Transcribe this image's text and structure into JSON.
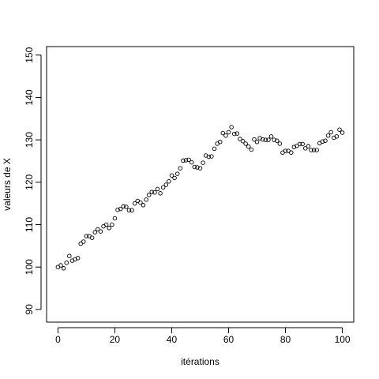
{
  "chart_data": {
    "type": "scatter",
    "xlabel": "itérations",
    "ylabel": "valeurs de X",
    "xlim": [
      -4,
      104
    ],
    "ylim": [
      87,
      152
    ],
    "x_ticks": [
      0,
      20,
      40,
      60,
      80,
      100
    ],
    "y_ticks": [
      90,
      100,
      110,
      120,
      130,
      140,
      150
    ],
    "x_tick_labels": [
      "0",
      "20",
      "40",
      "60",
      "80",
      "100"
    ],
    "y_tick_labels": [
      "90",
      "100",
      "110",
      "120",
      "130",
      "140",
      "150"
    ],
    "grid": false,
    "marker": "open-circle",
    "marker_color": "#000000",
    "series": [
      {
        "x": [
          0,
          1,
          2,
          3,
          4,
          5,
          6,
          7,
          8,
          9,
          10,
          11,
          12,
          13,
          14,
          15,
          16,
          17,
          18,
          19,
          20,
          21,
          22,
          23,
          24,
          25,
          26,
          27,
          28,
          29,
          30,
          31,
          32,
          33,
          34,
          35,
          36,
          37,
          38,
          39,
          40,
          41,
          42,
          43,
          44,
          45,
          46,
          47,
          48,
          49,
          50,
          51,
          52,
          53,
          54,
          55,
          56,
          57,
          58,
          59,
          60,
          61,
          62,
          63,
          64,
          65,
          66,
          67,
          68,
          69,
          70,
          71,
          72,
          73,
          74,
          75,
          76,
          77,
          78,
          79,
          80,
          81,
          82,
          83,
          84,
          85,
          86,
          87,
          88,
          89,
          90,
          91,
          92,
          93,
          94,
          95,
          96,
          97,
          98,
          99,
          100
        ],
        "y": [
          100,
          100.4,
          99.7,
          101,
          102.6,
          101.5,
          101.8,
          102.1,
          105.5,
          106,
          107.3,
          107.3,
          106.9,
          108.2,
          108.9,
          108.4,
          109.6,
          110,
          109.2,
          110,
          111.5,
          113.5,
          113.7,
          114.3,
          114.2,
          113.4,
          113.4,
          115,
          115.6,
          115.2,
          114.6,
          115.9,
          117,
          117.7,
          117.6,
          118.4,
          117.4,
          118.8,
          119.4,
          120.2,
          121.6,
          121,
          122,
          123.3,
          125.1,
          125.2,
          125.3,
          124.7,
          123.6,
          123.5,
          123.3,
          124.6,
          126.3,
          126,
          126.1,
          127.9,
          129.1,
          129.5,
          131.6,
          131,
          131.8,
          133,
          131.4,
          131.5,
          130.2,
          129.7,
          129.1,
          128.4,
          127.7,
          130.1,
          129.5,
          130.4,
          130.1,
          130,
          130,
          130.8,
          130,
          129.8,
          129.1,
          127,
          127.4,
          127.4,
          127,
          128.3,
          128.6,
          129,
          129,
          128,
          128.5,
          127.6,
          127.6,
          127.6,
          129.2,
          129.6,
          129.8,
          131,
          131.8,
          130.5,
          130.8,
          132.4,
          131.7
        ]
      }
    ]
  }
}
